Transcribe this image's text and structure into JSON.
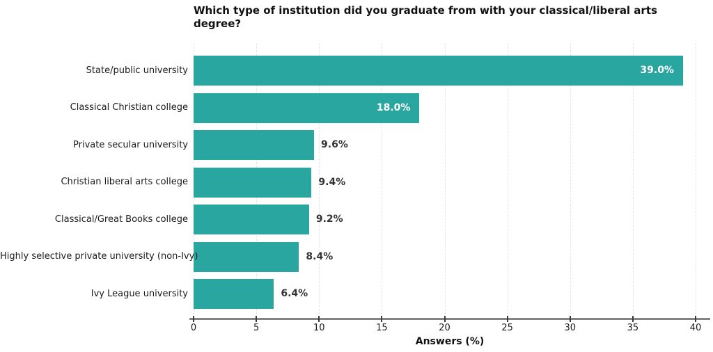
{
  "title": "Which type of institution did you graduate from with your classical/liberal arts degree?",
  "chart_data": {
    "type": "bar",
    "orientation": "horizontal",
    "title": "Which type of institution did you graduate from with your classical/liberal arts degree?",
    "categories": [
      "State/public university",
      "Classical Christian college",
      "Private secular university",
      "Christian liberal arts college",
      "Classical/Great Books college",
      "Highly selective private university (non-Ivy)",
      "Ivy League university"
    ],
    "values": [
      39.0,
      18.0,
      9.6,
      9.4,
      9.2,
      8.4,
      6.4
    ],
    "value_labels": [
      "39.0%",
      "18.0%",
      "9.6%",
      "9.4%",
      "9.2%",
      "8.4%",
      "6.4%"
    ],
    "xlabel": "Answers (%)",
    "xlim": [
      0,
      40
    ],
    "xticks": [
      0,
      5,
      10,
      15,
      20,
      25,
      30,
      35,
      40
    ],
    "grid": "vertical-dashed",
    "legend": "none",
    "bar_color": "#2aa6a1",
    "inside_label_color": "#ffffff",
    "outside_label_color": "#333333",
    "inside_label_threshold": 15
  }
}
